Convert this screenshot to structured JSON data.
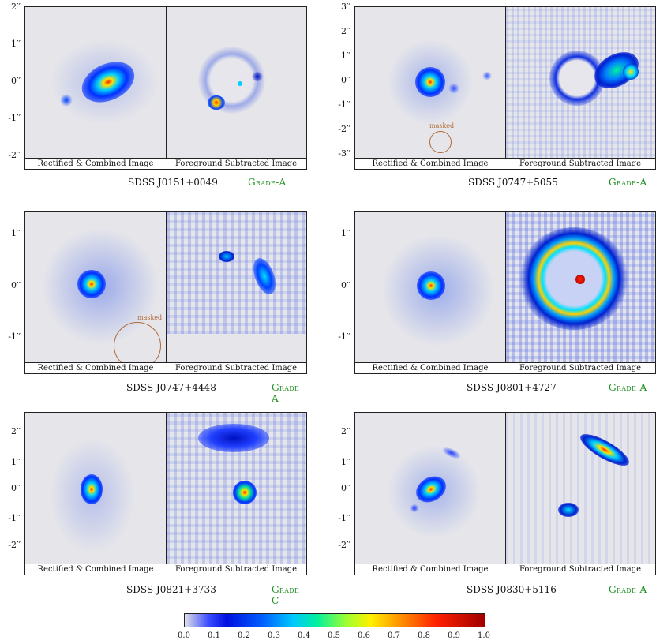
{
  "panels": [
    {
      "id": "j0151",
      "name": "SDSS J0151+0049",
      "grade": "Grade-A",
      "left_caption": "Rectified & Combined Image",
      "right_caption": "Foreground Subtracted Image",
      "y_ticks": [
        "2′′",
        "1′′",
        "0′′",
        "-1′′",
        "-2′′"
      ],
      "masked_label": ""
    },
    {
      "id": "j0747a",
      "name": "SDSS J0747+5055",
      "grade": "Grade-A",
      "left_caption": "Rectified & Combined Image",
      "right_caption": "Foreground Subtracted Image",
      "y_ticks": [
        "3′′",
        "2′′",
        "1′′",
        "0′′",
        "-1′′",
        "-2′′",
        "-3′′"
      ],
      "masked_label": "masked"
    },
    {
      "id": "j0747b",
      "name": "SDSS J0747+4448",
      "grade": "Grade-A",
      "left_caption": "Rectified & Combined Image",
      "right_caption": "Foreground Subtracted Image",
      "y_ticks": [
        "1′′",
        "0′′",
        "-1′′"
      ],
      "masked_label": "masked"
    },
    {
      "id": "j0801",
      "name": "SDSS J0801+4727",
      "grade": "Grade-A",
      "left_caption": "Rectified & Combined Image",
      "right_caption": "Foreground Subtracted Image",
      "y_ticks": [
        "1′′",
        "0′′",
        "-1′′"
      ],
      "masked_label": ""
    },
    {
      "id": "j0821",
      "name": "SDSS J0821+3733",
      "grade": "Grade-C",
      "left_caption": "Rectified & Combined Image",
      "right_caption": "Foreground Subtracted Image",
      "y_ticks": [
        "2′′",
        "1′′",
        "0′′",
        "-1′′",
        "-2′′"
      ],
      "masked_label": ""
    },
    {
      "id": "j0830",
      "name": "SDSS J0830+5116",
      "grade": "Grade-A",
      "left_caption": "Rectified & Combined Image",
      "right_caption": "Foreground Subtracted Image",
      "y_ticks": [
        "2′′",
        "1′′",
        "0′′",
        "-1′′",
        "-2′′"
      ],
      "masked_label": ""
    }
  ],
  "colorbar": {
    "ticks": [
      "0.0",
      "0.1",
      "0.2",
      "0.3",
      "0.4",
      "0.5",
      "0.6",
      "0.7",
      "0.8",
      "0.9",
      "1.0"
    ],
    "colors": {
      "low": "#e0e0e6",
      "high": "#a00000"
    }
  }
}
